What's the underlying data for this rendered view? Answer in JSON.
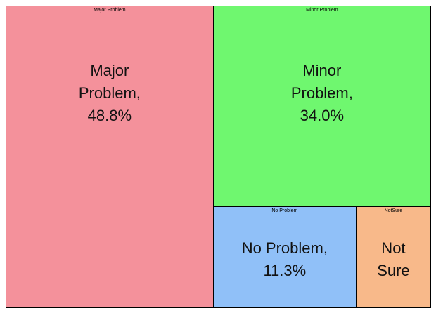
{
  "chart_data": {
    "type": "treemap",
    "categories": [
      "Major Problem",
      "Minor Problem",
      "No Problem",
      "NotSure"
    ],
    "values": [
      48.8,
      34.0,
      11.3,
      5.9
    ],
    "value_labels": [
      "Major Problem, 48.8%",
      "Minor Problem, 34.0%",
      "No Problem, 11.3%",
      "Not Sure"
    ],
    "colors": [
      "#f4919b",
      "#6ff76f",
      "#90c0f8",
      "#f8b98a"
    ]
  }
}
